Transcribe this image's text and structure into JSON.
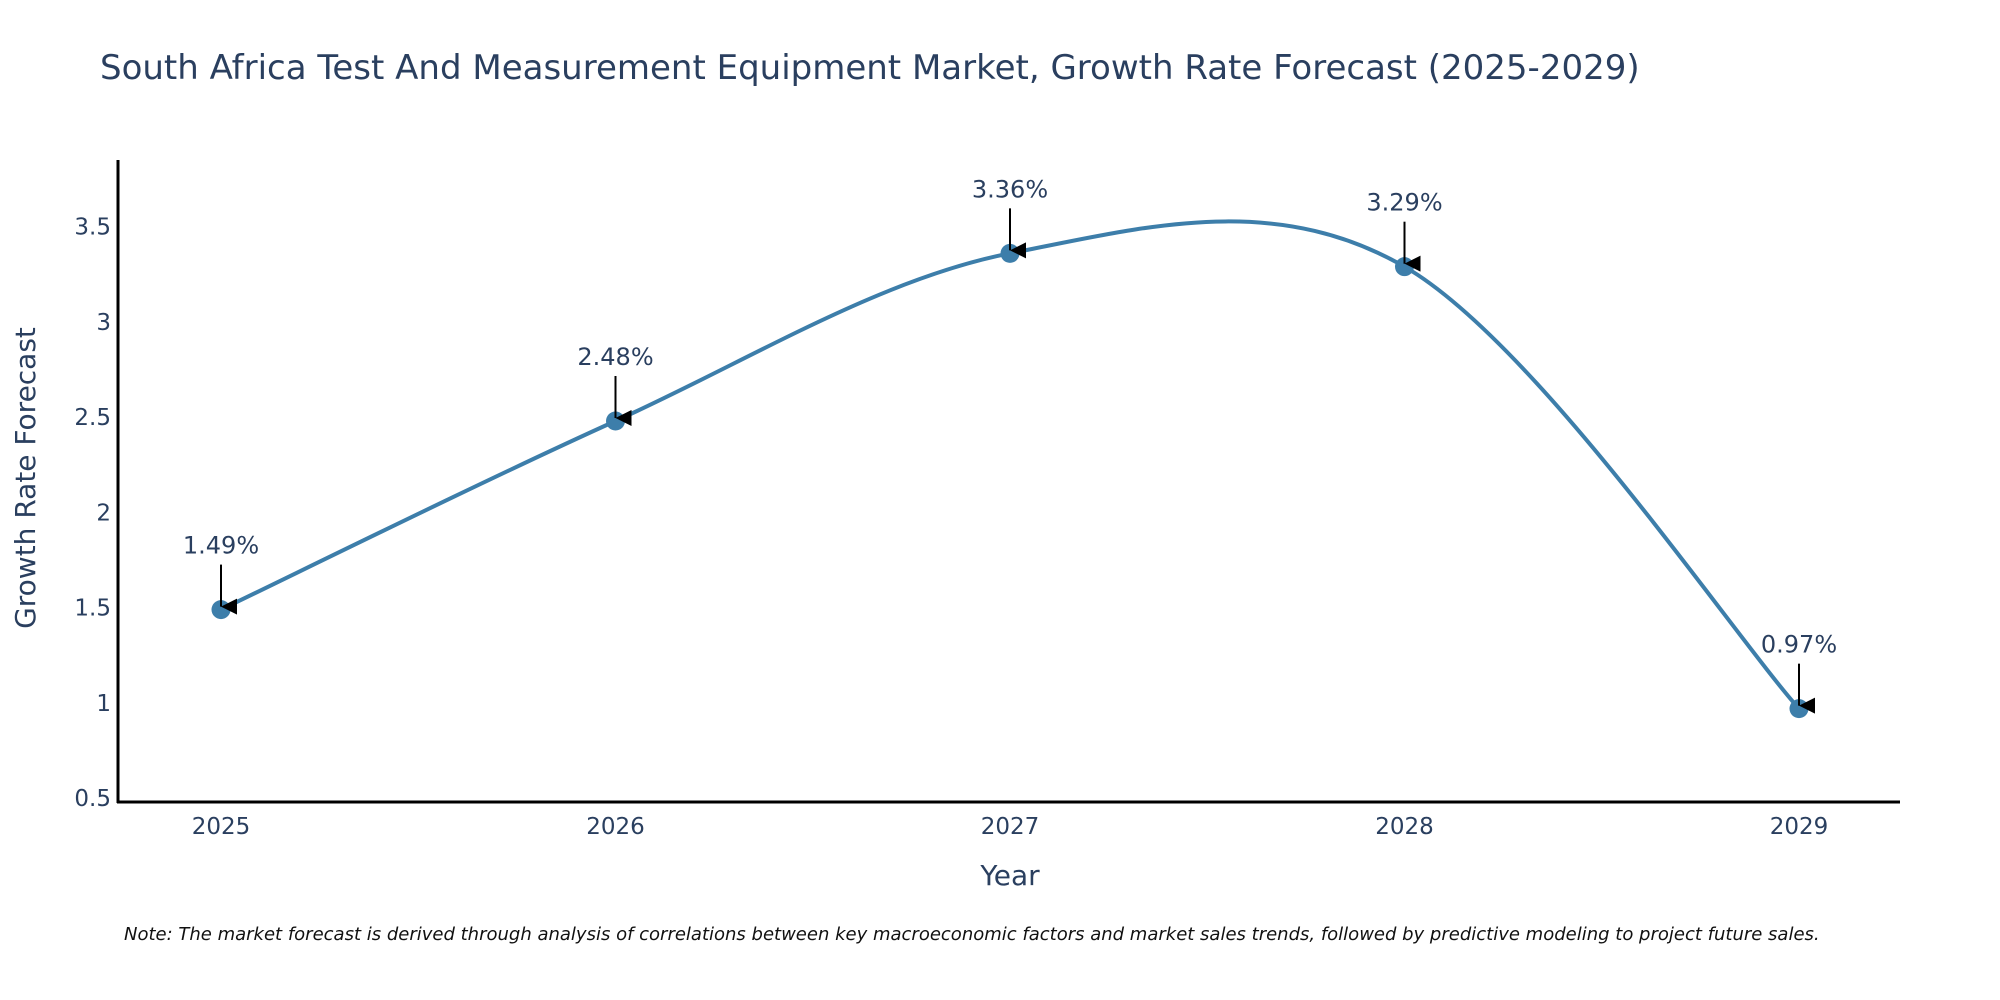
{
  "chart_data": {
    "type": "line",
    "title": "South Africa Test And Measurement Equipment Market, Growth Rate Forecast (2025-2029)",
    "xlabel": "Year",
    "ylabel": "Growth Rate Forecast",
    "categories": [
      "2025",
      "2026",
      "2027",
      "2028",
      "2029"
    ],
    "values": [
      1.49,
      2.48,
      3.36,
      3.29,
      0.97
    ],
    "data_labels": [
      "1.49%",
      "2.48%",
      "3.36%",
      "3.29%",
      "0.97%"
    ],
    "ylim": [
      0.48,
      3.85
    ],
    "y_ticks": [
      0.5,
      1,
      1.5,
      2,
      2.5,
      3,
      3.5
    ],
    "y_tick_labels": [
      "0.5",
      "1",
      "1.5",
      "2",
      "2.5",
      "3",
      "3.5"
    ],
    "line_shape": "spline",
    "grid": false,
    "colors": {
      "line": "#3d7eaa",
      "marker": "#3d7eaa",
      "arrow": "#000000",
      "text": "#2a3f5f",
      "axis": "#000000"
    },
    "note": "Note: The market forecast is derived through analysis of correlations between key macroeconomic factors and market sales trends, followed by predictive modeling to project future sales."
  }
}
